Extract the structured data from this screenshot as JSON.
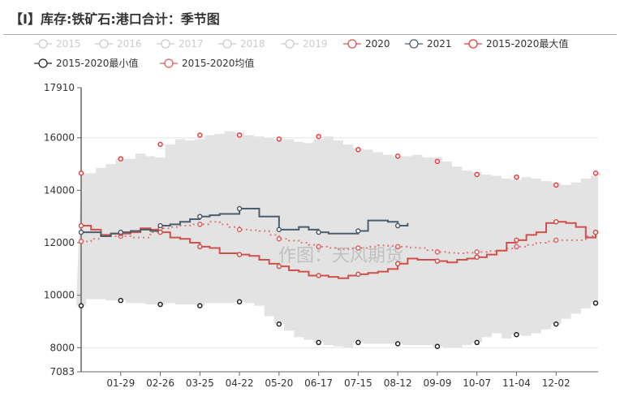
{
  "title": "【I】库存:铁矿石:港口合计：季节图",
  "watermark": "作图：天风期货",
  "chart_data": {
    "type": "line",
    "title": "【I】库存:铁矿石:港口合计：季节图",
    "ylim": [
      7083,
      17910
    ],
    "yticks": [
      7083,
      8000,
      10000,
      12000,
      14000,
      16000,
      17910
    ],
    "xticks": [
      "01-29",
      "02-26",
      "03-25",
      "04-22",
      "05-20",
      "06-17",
      "07-15",
      "08-12",
      "09-09",
      "10-07",
      "11-04",
      "12-02"
    ],
    "x_unit": "week of year (0-52)",
    "legend_placement": "top",
    "legend": [
      {
        "name": "2015",
        "color": "#cccccc",
        "active": false
      },
      {
        "name": "2016",
        "color": "#cccccc",
        "active": false
      },
      {
        "name": "2017",
        "color": "#cccccc",
        "active": false
      },
      {
        "name": "2018",
        "color": "#cccccc",
        "active": false
      },
      {
        "name": "2019",
        "color": "#cccccc",
        "active": false
      },
      {
        "name": "2020",
        "color": "#d9534f",
        "active": true
      },
      {
        "name": "2021",
        "color": "#4e5d6c",
        "active": true
      },
      {
        "name": "2015-2020最大值",
        "color": "#f03c3c",
        "active": true
      },
      {
        "name": "2015-2020最小值",
        "color": "#222222",
        "active": true
      },
      {
        "name": "2015-2020均值",
        "color": "#e06060",
        "active": true
      }
    ],
    "series": {
      "max": [
        14650,
        14850,
        15000,
        15200,
        15200,
        15400,
        15300,
        15250,
        15750,
        15950,
        15900,
        15950,
        16100,
        16150,
        16250,
        16200,
        16100,
        16050,
        16000,
        15900,
        15950,
        15850,
        15800,
        15950,
        16050,
        15900,
        15750,
        15600,
        15550,
        15450,
        15350,
        15300,
        15300,
        15350,
        15250,
        15250,
        15100,
        14900,
        14750,
        14700,
        14600,
        14550,
        14450,
        14400,
        14500,
        14450,
        14350,
        14300,
        14200,
        14300,
        14450,
        14550,
        14650
      ],
      "min": [
        9600,
        9850,
        9850,
        9800,
        9800,
        9700,
        9700,
        9650,
        9650,
        9700,
        9650,
        9650,
        9600,
        9700,
        9700,
        9700,
        9750,
        9700,
        9600,
        9200,
        8900,
        8650,
        8400,
        8300,
        8200,
        8100,
        8050,
        8000,
        8200,
        8150,
        8150,
        8150,
        8150,
        8100,
        8100,
        8100,
        8050,
        8000,
        8000,
        8100,
        8200,
        8400,
        8550,
        8350,
        8500,
        8450,
        8550,
        8700,
        8900,
        9100,
        9300,
        9500,
        9700
      ],
      "y2020": [
        12650,
        12500,
        12300,
        12350,
        12350,
        12400,
        12550,
        12500,
        12400,
        12200,
        12150,
        12000,
        11850,
        11800,
        11600,
        11600,
        11550,
        11500,
        11350,
        11200,
        11100,
        10950,
        10900,
        10750,
        10750,
        10700,
        10650,
        10750,
        10800,
        10850,
        10900,
        11000,
        11200,
        11400,
        11350,
        11350,
        11300,
        11250,
        11350,
        11400,
        11450,
        11550,
        11700,
        12000,
        12100,
        12300,
        12400,
        12750,
        12800,
        12750,
        12600,
        12200,
        12400
      ],
      "y2021": [
        12400,
        12400,
        12250,
        12350,
        12400,
        12450,
        12500,
        12450,
        12650,
        12700,
        12800,
        12900,
        13000,
        13050,
        13100,
        13100,
        13300,
        13300,
        13000,
        13000,
        12500,
        12500,
        12600,
        12500,
        12400,
        12350,
        12350,
        12350,
        12450,
        12850,
        12850,
        12800,
        12650,
        12750
      ],
      "avg": [
        12050,
        12150,
        12250,
        12250,
        12250,
        12200,
        12200,
        12400,
        12550,
        12600,
        12650,
        12700,
        12700,
        12800,
        12700,
        12600,
        12500,
        12480,
        12450,
        12300,
        12150,
        12080,
        12000,
        11920,
        11850,
        11800,
        11750,
        11780,
        11800,
        11850,
        11900,
        11880,
        11850,
        11820,
        11800,
        11720,
        11650,
        11620,
        11600,
        11620,
        11650,
        11680,
        11700,
        11780,
        11850,
        11920,
        12000,
        12050,
        12100,
        12100,
        12100,
        12250,
        12400
      ]
    }
  }
}
